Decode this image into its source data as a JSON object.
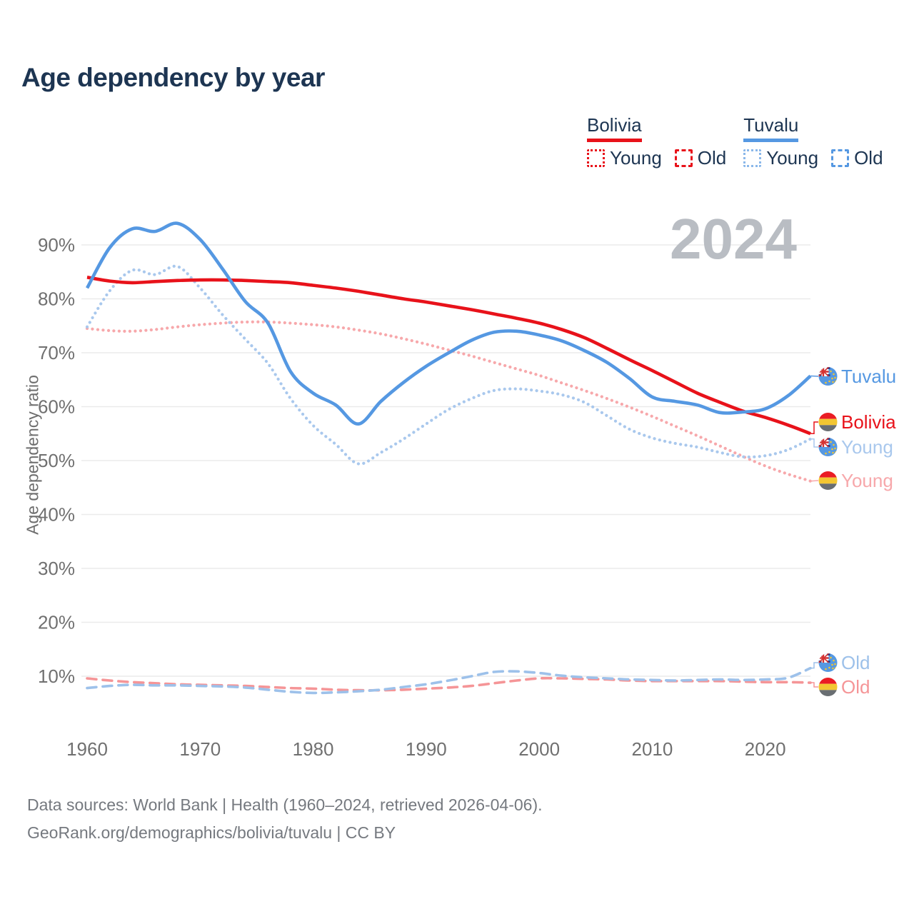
{
  "title": "Age dependency by year",
  "watermark": "2024",
  "colors": {
    "bolivia": "#e8121a",
    "tuvalu": "#5598e2",
    "bolivia_young": "#f7a8ab",
    "tuvalu_young": "#a9c8ed",
    "bolivia_old": "#f59597",
    "tuvalu_old": "#9dc1ea",
    "axis_text": "#707070",
    "grid": "#ebebeb",
    "watermark": "#b9bdc3",
    "heading_text": "#1d3552",
    "footer_text": "#75797f"
  },
  "legend": {
    "groups": [
      {
        "label": "Bolivia",
        "color": "#e8121a",
        "items": [
          {
            "label": "Young",
            "style": "dotted"
          },
          {
            "label": "Old",
            "style": "dashed"
          }
        ]
      },
      {
        "label": "Tuvalu",
        "color": "#5598e2",
        "items": [
          {
            "label": "Young",
            "style": "dotted"
          },
          {
            "label": "Old",
            "style": "dashed"
          }
        ]
      }
    ]
  },
  "y_axis": {
    "label": "Age dependency ratio",
    "ticks": [
      "90%",
      "80%",
      "70%",
      "60%",
      "50%",
      "40%",
      "30%",
      "20%",
      "10%"
    ]
  },
  "x_axis": {
    "ticks": [
      "1960",
      "1970",
      "1980",
      "1990",
      "2000",
      "2010",
      "2020"
    ]
  },
  "right_labels": [
    {
      "label": "Tuvalu",
      "flag": "tuvalu",
      "color": "#5598e2",
      "value_pct": 65.7
    },
    {
      "label": "Bolivia",
      "flag": "bolivia",
      "color": "#e8121a",
      "value_pct": 55.0
    },
    {
      "label": "Young",
      "flag": "tuvalu",
      "color": "#a9c8ed",
      "value_pct": 54.0
    },
    {
      "label": "Young",
      "flag": "bolivia",
      "color": "#f7a8ab",
      "value_pct": 46.2
    },
    {
      "label": "Old",
      "flag": "tuvalu",
      "color": "#9dc1ea",
      "value_pct": 11.5
    },
    {
      "label": "Old",
      "flag": "bolivia",
      "color": "#f59597",
      "value_pct": 8.8
    }
  ],
  "footer": {
    "line1": "Data sources: World Bank | Health (1960–2024, retrieved 2026-04-06).",
    "line2": "GeoRank.org/demographics/bolivia/tuvalu | CC BY"
  },
  "chart_data": {
    "type": "line",
    "title": "Age dependency by year",
    "xlabel": "",
    "ylabel": "Age dependency ratio",
    "ylim": [
      0,
      100
    ],
    "xlim": [
      1960,
      2024
    ],
    "grid": "horizontal",
    "legend_position": "top-right",
    "x_years": [
      1960,
      1962,
      1964,
      1966,
      1968,
      1970,
      1972,
      1974,
      1976,
      1978,
      1980,
      1982,
      1984,
      1986,
      1988,
      1990,
      1992,
      1994,
      1996,
      1998,
      2000,
      2002,
      2004,
      2006,
      2008,
      2010,
      2012,
      2014,
      2016,
      2018,
      2020,
      2022,
      2024
    ],
    "series": [
      {
        "name": "Bolivia Old",
        "country": "Bolivia",
        "group": "Old",
        "style": "dashed",
        "color": "#f59597",
        "values": [
          9.6,
          9.2,
          8.9,
          8.7,
          8.5,
          8.4,
          8.3,
          8.2,
          8.0,
          7.8,
          7.7,
          7.5,
          7.4,
          7.4,
          7.5,
          7.7,
          7.9,
          8.2,
          8.7,
          9.2,
          9.6,
          9.6,
          9.5,
          9.4,
          9.2,
          9.1,
          9.1,
          9.1,
          9.1,
          9.0,
          8.9,
          8.9,
          8.8
        ]
      },
      {
        "name": "Tuvalu Old",
        "country": "Tuvalu",
        "group": "Old",
        "style": "dashed",
        "color": "#9dc1ea",
        "values": [
          7.8,
          8.2,
          8.4,
          8.3,
          8.3,
          8.2,
          8.1,
          7.9,
          7.5,
          7.1,
          6.9,
          7.0,
          7.2,
          7.5,
          8.0,
          8.5,
          9.2,
          10.0,
          10.8,
          10.9,
          10.6,
          10.1,
          9.8,
          9.6,
          9.4,
          9.3,
          9.2,
          9.3,
          9.4,
          9.3,
          9.4,
          9.7,
          11.5
        ]
      },
      {
        "name": "Bolivia Young",
        "country": "Bolivia",
        "group": "Young",
        "style": "dotted",
        "color": "#f7a8ab",
        "values": [
          74.5,
          74.1,
          74.0,
          74.3,
          74.8,
          75.2,
          75.5,
          75.7,
          75.7,
          75.5,
          75.2,
          74.8,
          74.2,
          73.5,
          72.6,
          71.6,
          70.5,
          69.4,
          68.2,
          67.0,
          65.8,
          64.4,
          63.0,
          61.5,
          59.9,
          58.2,
          56.4,
          54.6,
          52.7,
          50.8,
          49.0,
          47.5,
          46.2
        ]
      },
      {
        "name": "Tuvalu Young",
        "country": "Tuvalu",
        "group": "Young",
        "style": "dotted",
        "color": "#a9c8ed",
        "values": [
          74.8,
          81.5,
          85.3,
          84.5,
          86.0,
          82.0,
          77.0,
          72.5,
          68.0,
          61.5,
          56.5,
          53.0,
          49.4,
          51.5,
          54.0,
          56.8,
          59.5,
          61.5,
          63.0,
          63.3,
          62.9,
          62.2,
          60.8,
          58.3,
          55.8,
          54.2,
          53.2,
          52.5,
          51.5,
          50.7,
          50.9,
          52.0,
          54.0
        ]
      },
      {
        "name": "Bolivia",
        "country": "Bolivia",
        "group": "Total",
        "style": "solid",
        "color": "#e8121a",
        "values": [
          84.0,
          83.3,
          83.0,
          83.2,
          83.4,
          83.5,
          83.5,
          83.4,
          83.2,
          83.0,
          82.5,
          82.0,
          81.4,
          80.7,
          80.0,
          79.4,
          78.7,
          78.0,
          77.2,
          76.4,
          75.5,
          74.3,
          72.8,
          70.8,
          68.7,
          66.7,
          64.6,
          62.5,
          60.8,
          59.2,
          58.0,
          56.6,
          55.0
        ]
      },
      {
        "name": "Tuvalu",
        "country": "Tuvalu",
        "group": "Total",
        "style": "solid",
        "color": "#5598e2",
        "values": [
          82.0,
          89.5,
          93.0,
          92.5,
          94.0,
          91.0,
          85.5,
          79.5,
          75.5,
          66.5,
          62.5,
          60.3,
          56.8,
          61.0,
          64.5,
          67.5,
          70.0,
          72.3,
          73.8,
          74.0,
          73.3,
          72.2,
          70.4,
          68.2,
          65.2,
          61.8,
          61.0,
          60.3,
          58.9,
          59.0,
          59.6,
          62.0,
          65.7
        ]
      }
    ]
  }
}
